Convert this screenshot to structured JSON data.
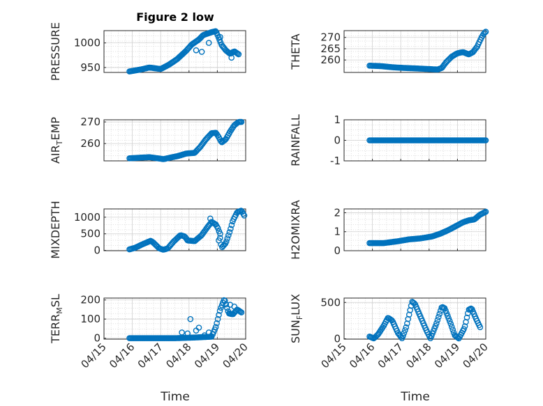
{
  "figure": {
    "title": "Figure 2 low",
    "marker_color": "#0072BD",
    "x_date_range": [
      "04/15",
      "04/20"
    ],
    "x_tick_labels": [
      "04/15",
      "04/16",
      "04/17",
      "04/18",
      "04/19",
      "04/20"
    ]
  },
  "chart_data": [
    {
      "type": "scatter",
      "ylabel": "PRESSURE",
      "xlim": [
        0,
        5
      ],
      "ylim": [
        940,
        1025
      ],
      "yticks": [
        950,
        1000
      ],
      "ytick_labels": [
        "950",
        "1000"
      ],
      "xticklabels_visible": false,
      "keypoints": [
        [
          0.9,
          942
        ],
        [
          1.3,
          946
        ],
        [
          1.6,
          950
        ],
        [
          2.0,
          947
        ],
        [
          2.3,
          956
        ],
        [
          2.6,
          968
        ],
        [
          2.9,
          984
        ],
        [
          3.1,
          997
        ],
        [
          3.35,
          1007
        ],
        [
          3.5,
          1016
        ],
        [
          3.8,
          1022
        ],
        [
          3.95,
          1024
        ],
        [
          4.05,
          1010
        ],
        [
          4.15,
          996
        ],
        [
          4.3,
          985
        ],
        [
          4.45,
          978
        ],
        [
          4.6,
          983
        ],
        [
          4.75,
          977
        ]
      ],
      "extra_points": [
        [
          3.25,
          985
        ],
        [
          3.45,
          982
        ],
        [
          3.7,
          1000
        ],
        [
          4.1,
          1012
        ],
        [
          4.5,
          970
        ]
      ]
    },
    {
      "type": "scatter",
      "ylabel": "THETA",
      "xlim": [
        0,
        5
      ],
      "ylim": [
        254.5,
        273
      ],
      "yticks": [
        260,
        265,
        270
      ],
      "ytick_labels": [
        "260",
        "265",
        "270"
      ],
      "xticklabels_visible": false,
      "keypoints": [
        [
          0.9,
          257.5
        ],
        [
          1.3,
          257.3
        ],
        [
          1.7,
          256.8
        ],
        [
          2.1,
          256.5
        ],
        [
          2.5,
          256.3
        ],
        [
          3.0,
          256.0
        ],
        [
          3.3,
          255.8
        ],
        [
          3.45,
          256.5
        ],
        [
          3.6,
          259
        ],
        [
          3.8,
          261.5
        ],
        [
          4.0,
          263
        ],
        [
          4.2,
          263.5
        ],
        [
          4.4,
          262.5
        ],
        [
          4.55,
          263.5
        ],
        [
          4.7,
          266
        ],
        [
          4.85,
          270
        ],
        [
          4.95,
          272
        ],
        [
          5.0,
          272.5
        ]
      ],
      "extra_points": []
    },
    {
      "type": "scatter",
      "ylabel": "AIR_TEMP",
      "xlim": [
        0,
        5
      ],
      "ylim": [
        252,
        271
      ],
      "yticks": [
        260,
        270
      ],
      "ytick_labels": [
        "260",
        "270"
      ],
      "xticklabels_visible": false,
      "keypoints": [
        [
          0.9,
          253.2
        ],
        [
          1.3,
          253.5
        ],
        [
          1.6,
          253.7
        ],
        [
          1.9,
          253.2
        ],
        [
          2.1,
          252.8
        ],
        [
          2.3,
          253.4
        ],
        [
          2.6,
          254.2
        ],
        [
          2.9,
          255.4
        ],
        [
          3.2,
          255.7
        ],
        [
          3.4,
          258.5
        ],
        [
          3.6,
          262
        ],
        [
          3.8,
          264.8
        ],
        [
          3.95,
          265
        ],
        [
          4.05,
          263
        ],
        [
          4.15,
          260.5
        ],
        [
          4.3,
          262
        ],
        [
          4.45,
          265.5
        ],
        [
          4.6,
          268.5
        ],
        [
          4.75,
          270
        ],
        [
          4.85,
          270
        ]
      ],
      "extra_points": []
    },
    {
      "type": "scatter",
      "ylabel": "RAINFALL",
      "xlim": [
        0,
        5
      ],
      "ylim": [
        -1,
        1
      ],
      "yticks": [
        -1,
        0,
        1
      ],
      "ytick_labels": [
        "-1",
        "0",
        "1"
      ],
      "xticklabels_visible": false,
      "keypoints": [
        [
          0.9,
          0
        ],
        [
          5.0,
          0
        ]
      ],
      "extra_points": []
    },
    {
      "type": "scatter",
      "ylabel": "MIXDEPTH",
      "xlim": [
        0,
        5
      ],
      "ylim": [
        -10,
        1250
      ],
      "yticks": [
        0,
        500,
        1000
      ],
      "ytick_labels": [
        "0",
        "500",
        "1000"
      ],
      "xticklabels_visible": false,
      "keypoints": [
        [
          0.9,
          30
        ],
        [
          1.1,
          80
        ],
        [
          1.4,
          200
        ],
        [
          1.65,
          290
        ],
        [
          1.75,
          230
        ],
        [
          1.95,
          60
        ],
        [
          2.1,
          20
        ],
        [
          2.25,
          60
        ],
        [
          2.45,
          260
        ],
        [
          2.7,
          460
        ],
        [
          2.85,
          420
        ],
        [
          2.95,
          300
        ],
        [
          3.2,
          280
        ],
        [
          3.45,
          460
        ],
        [
          3.65,
          700
        ],
        [
          3.8,
          860
        ],
        [
          3.95,
          780
        ],
        [
          4.05,
          620
        ],
        [
          4.15,
          80
        ],
        [
          4.3,
          220
        ],
        [
          4.45,
          600
        ],
        [
          4.55,
          900
        ],
        [
          4.7,
          1150
        ],
        [
          4.85,
          1200
        ],
        [
          4.95,
          1050
        ]
      ],
      "extra_points": [
        [
          4.05,
          300
        ],
        [
          4.1,
          500
        ],
        [
          3.75,
          960
        ]
      ]
    },
    {
      "type": "scatter",
      "ylabel": "H2OMIXRA",
      "xlim": [
        0,
        5
      ],
      "ylim": [
        0,
        2.2
      ],
      "yticks": [
        0,
        1,
        2
      ],
      "ytick_labels": [
        "0",
        "1",
        "2"
      ],
      "xticklabels_visible": false,
      "keypoints": [
        [
          0.9,
          0.4
        ],
        [
          1.4,
          0.4
        ],
        [
          1.9,
          0.5
        ],
        [
          2.3,
          0.6
        ],
        [
          2.7,
          0.65
        ],
        [
          3.1,
          0.75
        ],
        [
          3.4,
          0.9
        ],
        [
          3.7,
          1.1
        ],
        [
          3.95,
          1.3
        ],
        [
          4.2,
          1.5
        ],
        [
          4.4,
          1.6
        ],
        [
          4.6,
          1.65
        ],
        [
          4.8,
          1.9
        ],
        [
          5.0,
          2.05
        ]
      ],
      "extra_points": []
    },
    {
      "type": "scatter",
      "ylabel": "TERR_MSL",
      "xlim": [
        0,
        5
      ],
      "ylim": [
        -5,
        210
      ],
      "yticks": [
        0,
        100,
        200
      ],
      "ytick_labels": [
        "0",
        "100",
        "200"
      ],
      "xticklabels_visible": true,
      "keypoints": [
        [
          0.9,
          0
        ],
        [
          1.5,
          0
        ],
        [
          2.0,
          0
        ],
        [
          2.5,
          0
        ],
        [
          2.9,
          2
        ],
        [
          3.1,
          3
        ],
        [
          3.4,
          5
        ],
        [
          3.8,
          8
        ],
        [
          3.95,
          60
        ],
        [
          4.1,
          150
        ],
        [
          4.25,
          205
        ],
        [
          4.4,
          130
        ],
        [
          4.55,
          125
        ],
        [
          4.7,
          150
        ],
        [
          4.85,
          135
        ]
      ],
      "extra_points": [
        [
          2.75,
          30
        ],
        [
          2.95,
          25
        ],
        [
          3.05,
          100
        ],
        [
          3.25,
          40
        ],
        [
          3.35,
          55
        ],
        [
          3.55,
          15
        ],
        [
          3.7,
          30
        ],
        [
          4.45,
          175
        ],
        [
          4.6,
          165
        ]
      ]
    },
    {
      "type": "scatter",
      "ylabel": "SUN_FLUX",
      "xlim": [
        0,
        5
      ],
      "ylim": [
        -5,
        560
      ],
      "yticks": [
        0,
        500
      ],
      "ytick_labels": [
        "0",
        "500"
      ],
      "xticklabels_visible": true,
      "keypoints": [
        [
          0.9,
          30
        ],
        [
          1.05,
          5
        ],
        [
          1.2,
          60
        ],
        [
          1.4,
          180
        ],
        [
          1.55,
          290
        ],
        [
          1.7,
          250
        ],
        [
          1.9,
          80
        ],
        [
          2.05,
          5
        ],
        [
          2.2,
          170
        ],
        [
          2.4,
          510
        ],
        [
          2.5,
          480
        ],
        [
          2.7,
          300
        ],
        [
          2.9,
          120
        ],
        [
          3.05,
          5
        ],
        [
          3.25,
          200
        ],
        [
          3.45,
          440
        ],
        [
          3.55,
          420
        ],
        [
          3.75,
          220
        ],
        [
          3.9,
          50
        ],
        [
          4.05,
          5
        ],
        [
          4.25,
          150
        ],
        [
          4.4,
          400
        ],
        [
          4.5,
          420
        ],
        [
          4.65,
          280
        ],
        [
          4.8,
          160
        ]
      ],
      "extra_points": []
    }
  ]
}
